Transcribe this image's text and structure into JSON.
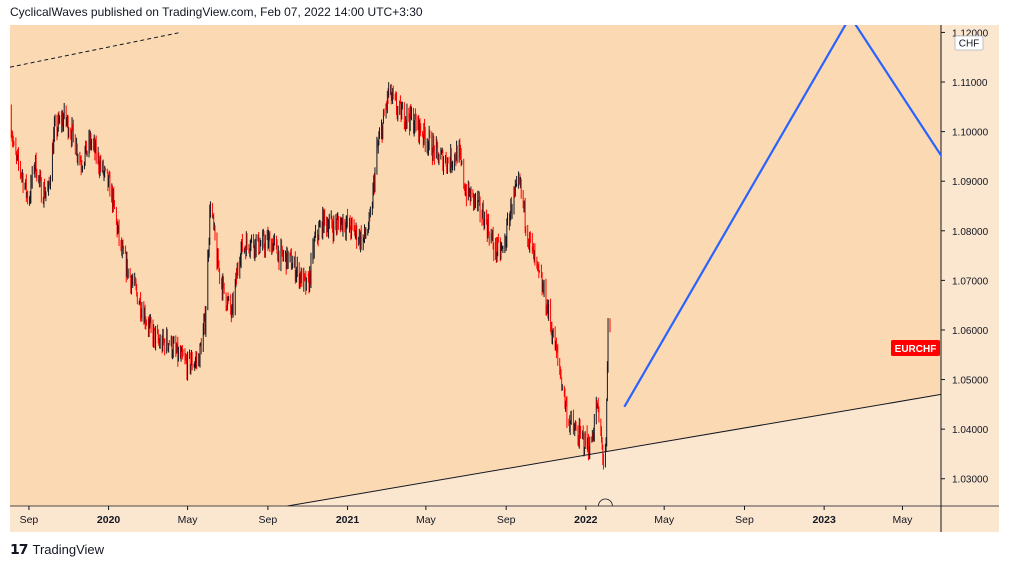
{
  "header": {
    "text": "CyclicalWaves published on TradingView.com, Feb 07, 2022 14:00 UTC+3:30"
  },
  "footer": {
    "logo_icon": "tradingview-logo-icon",
    "text": "TradingView"
  },
  "colors": {
    "background_upper": "#fbdab3",
    "background_lower": "#fbe6cf",
    "axis_panel": "#fbe6cf",
    "candle_up": "#131722",
    "candle_down": "#ff0000",
    "projection_line": "#2962ff",
    "trend_line": "#131722",
    "symbol_badge": "#ff0000"
  },
  "chart_data": {
    "type": "line",
    "symbol": "EURCHF",
    "currency": "CHF",
    "x_axis": {
      "range": [
        "2019-08-03",
        "2023-06-29"
      ],
      "ticks": [
        {
          "date": "2019-09-01",
          "label": "Sep",
          "bold": false
        },
        {
          "date": "2020-01-01",
          "label": "2020",
          "bold": true
        },
        {
          "date": "2020-05-01",
          "label": "May",
          "bold": false
        },
        {
          "date": "2020-09-01",
          "label": "Sep",
          "bold": false
        },
        {
          "date": "2021-01-01",
          "label": "2021",
          "bold": true
        },
        {
          "date": "2021-05-01",
          "label": "May",
          "bold": false
        },
        {
          "date": "2021-09-01",
          "label": "Sep",
          "bold": false
        },
        {
          "date": "2022-01-01",
          "label": "2022",
          "bold": true
        },
        {
          "date": "2022-05-01",
          "label": "May",
          "bold": false
        },
        {
          "date": "2022-09-01",
          "label": "Sep",
          "bold": false
        },
        {
          "date": "2023-01-01",
          "label": "2023",
          "bold": true
        },
        {
          "date": "2023-05-01",
          "label": "May",
          "bold": false
        }
      ]
    },
    "y_axis": {
      "range": [
        1.0245,
        1.1215
      ],
      "ticks": [
        "1.03000",
        "1.04000",
        "1.05000",
        "1.06000",
        "1.07000",
        "1.08000",
        "1.09000",
        "1.10000",
        "1.11000",
        "1.12000"
      ]
    },
    "price_series": {
      "name": "EURCHF",
      "points": [
        [
          "2019-08-03",
          1.104
        ],
        [
          "2019-08-10",
          1.095
        ],
        [
          "2019-08-20",
          1.092
        ],
        [
          "2019-09-01",
          1.086
        ],
        [
          "2019-09-10",
          1.094
        ],
        [
          "2019-09-20",
          1.088
        ],
        [
          "2019-10-01",
          1.088
        ],
        [
          "2019-10-10",
          1.1
        ],
        [
          "2019-10-25",
          1.103
        ],
        [
          "2019-11-05",
          1.1
        ],
        [
          "2019-11-20",
          1.094
        ],
        [
          "2019-12-05",
          1.098
        ],
        [
          "2019-12-20",
          1.093
        ],
        [
          "2020-01-05",
          1.088
        ],
        [
          "2020-01-20",
          1.076
        ],
        [
          "2020-02-05",
          1.07
        ],
        [
          "2020-02-20",
          1.065
        ],
        [
          "2020-03-05",
          1.06
        ],
        [
          "2020-03-20",
          1.057
        ],
        [
          "2020-04-01",
          1.058
        ],
        [
          "2020-04-15",
          1.055
        ],
        [
          "2020-05-01",
          1.053
        ],
        [
          "2020-05-18",
          1.054
        ],
        [
          "2020-05-28",
          1.062
        ],
        [
          "2020-06-05",
          1.086
        ],
        [
          "2020-06-15",
          1.074
        ],
        [
          "2020-06-25",
          1.068
        ],
        [
          "2020-07-08",
          1.063
        ],
        [
          "2020-07-20",
          1.076
        ],
        [
          "2020-08-05",
          1.078
        ],
        [
          "2020-08-20",
          1.077
        ],
        [
          "2020-09-05",
          1.078
        ],
        [
          "2020-09-20",
          1.075
        ],
        [
          "2020-10-05",
          1.074
        ],
        [
          "2020-10-20",
          1.071
        ],
        [
          "2020-11-01",
          1.068
        ],
        [
          "2020-11-12",
          1.078
        ],
        [
          "2020-11-25",
          1.082
        ],
        [
          "2020-12-10",
          1.081
        ],
        [
          "2020-12-25",
          1.082
        ],
        [
          "2021-01-10",
          1.08
        ],
        [
          "2021-01-25",
          1.078
        ],
        [
          "2021-02-05",
          1.082
        ],
        [
          "2021-02-15",
          1.096
        ],
        [
          "2021-02-25",
          1.102
        ],
        [
          "2021-03-05",
          1.108
        ],
        [
          "2021-03-20",
          1.104
        ],
        [
          "2021-04-05",
          1.103
        ],
        [
          "2021-04-20",
          1.101
        ],
        [
          "2021-05-05",
          1.098
        ],
        [
          "2021-05-20",
          1.095
        ],
        [
          "2021-06-05",
          1.094
        ],
        [
          "2021-06-20",
          1.096
        ],
        [
          "2021-07-01",
          1.088
        ],
        [
          "2021-07-15",
          1.086
        ],
        [
          "2021-08-01",
          1.082
        ],
        [
          "2021-08-15",
          1.076
        ],
        [
          "2021-08-28",
          1.076
        ],
        [
          "2021-09-10",
          1.086
        ],
        [
          "2021-09-22",
          1.089
        ],
        [
          "2021-10-05",
          1.079
        ],
        [
          "2021-10-18",
          1.072
        ],
        [
          "2021-10-30",
          1.067
        ],
        [
          "2021-11-10",
          1.06
        ],
        [
          "2021-11-22",
          1.052
        ],
        [
          "2021-12-05",
          1.042
        ],
        [
          "2021-12-18",
          1.039
        ],
        [
          "2021-12-28",
          1.038
        ],
        [
          "2022-01-08",
          1.036
        ],
        [
          "2022-01-18",
          1.045
        ],
        [
          "2022-01-28",
          1.034
        ],
        [
          "2022-02-01",
          1.036
        ],
        [
          "2022-02-04",
          1.06
        ],
        [
          "2022-02-07",
          1.06
        ]
      ]
    },
    "projection_line": {
      "points": [
        [
          "2022-03-01",
          1.0445
        ],
        [
          "2023-02-10",
          1.1232
        ],
        [
          "2023-07-05",
          1.094
        ]
      ]
    },
    "trend_lines": [
      {
        "style": "solid",
        "points": [
          [
            "2020-10-01",
            1.0245
          ],
          [
            "2023-06-29",
            1.047
          ]
        ]
      },
      {
        "style": "dashed",
        "points": [
          [
            "2019-08-03",
            1.113
          ],
          [
            "2020-04-20",
            1.12
          ]
        ]
      }
    ],
    "price_label": "EURCHF"
  }
}
